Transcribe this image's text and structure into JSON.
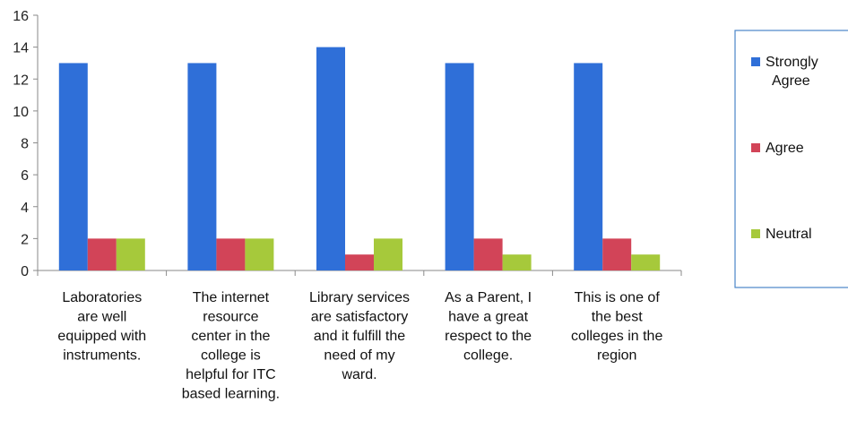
{
  "chart_data": {
    "type": "bar",
    "categories": [
      [
        "Laboratories",
        "are well",
        "equipped with",
        "instruments."
      ],
      [
        "The internet",
        "resource",
        "center in the",
        "college is",
        "helpful for ITC",
        "based learning."
      ],
      [
        "Library services",
        "are satisfactory",
        "and it fulfill the",
        "need of my",
        "ward."
      ],
      [
        "As a Parent, I",
        "have a great",
        "respect to the",
        "college."
      ],
      [
        "This is one of",
        "the best",
        "colleges in the",
        "region"
      ]
    ],
    "series": [
      {
        "name": [
          "Strongly",
          "Agree"
        ],
        "values": [
          13,
          13,
          14,
          13,
          13
        ],
        "color": "#2f6fd8"
      },
      {
        "name": [
          "Agree"
        ],
        "values": [
          2,
          2,
          1,
          2,
          2
        ],
        "color": "#d24458"
      },
      {
        "name": [
          "Neutral"
        ],
        "values": [
          2,
          2,
          2,
          1,
          1
        ],
        "color": "#a6c93b"
      }
    ],
    "yticks": [
      0,
      2,
      4,
      6,
      8,
      10,
      12,
      14,
      16
    ],
    "ylim": [
      0,
      16
    ],
    "grid": false,
    "legend": "right"
  }
}
